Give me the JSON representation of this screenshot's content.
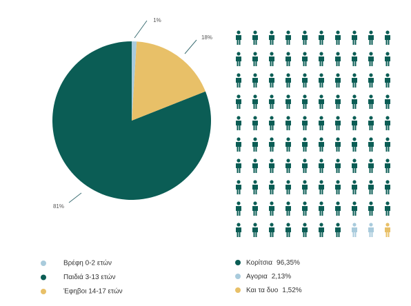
{
  "chart_data": [
    {
      "type": "pie",
      "categories": [
        "Βρέφη 0-2 ετών",
        "Παιδιά 3-13 ετών",
        "Έφηβοι 14-17 ετών"
      ],
      "values": [
        1,
        81,
        18
      ],
      "value_labels": [
        "1%",
        "81%",
        "18%"
      ],
      "colors": [
        "#a9cbdc",
        "#0b5d55",
        "#e8c068"
      ]
    },
    {
      "type": "pictogram",
      "series": [
        {
          "name": "Κορίτσια",
          "color": "#0b5d55",
          "values": [
            96.35
          ],
          "value_labels": [
            "96,35%"
          ],
          "icons": 97
        },
        {
          "name": "Αγορια",
          "color": "#a9cbdc",
          "values": [
            2.13
          ],
          "value_labels": [
            "2,13%"
          ],
          "icons": 2
        },
        {
          "name": "Και τα δυο",
          "color": "#e8c068",
          "values": [
            1.52
          ],
          "value_labels": [
            "1,52%"
          ],
          "icons": 1
        }
      ]
    }
  ]
}
